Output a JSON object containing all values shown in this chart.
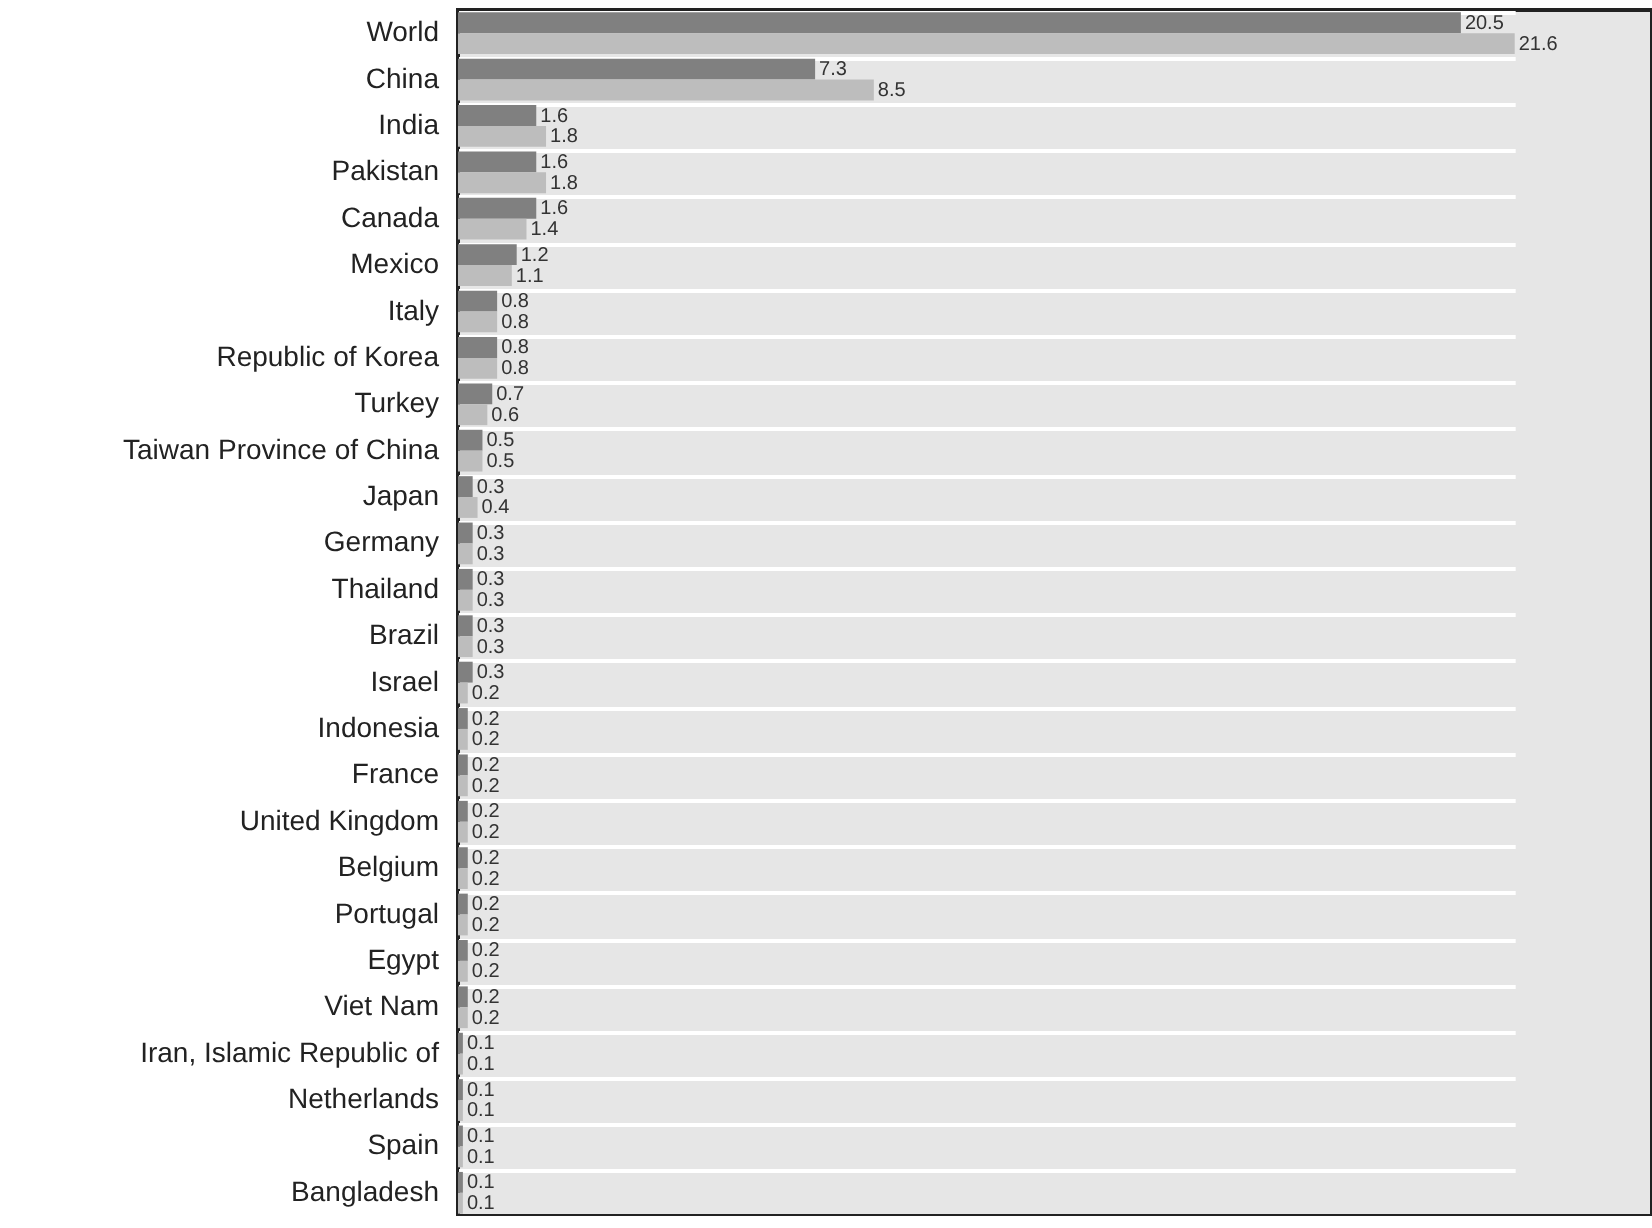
{
  "chart_data": {
    "type": "bar",
    "orientation": "horizontal",
    "data_labels": true,
    "categories": [
      "World",
      "China",
      "India",
      "Pakistan",
      "Canada",
      "Mexico",
      "Italy",
      "Republic of Korea",
      "Turkey",
      "Taiwan Province of China",
      "Japan",
      "Germany",
      "Thailand",
      "Brazil",
      "Israel",
      "Indonesia",
      "France",
      "United Kingdom",
      "Belgium",
      "Portugal",
      "Egypt",
      "Viet Nam",
      "Iran, Islamic Republic of",
      "Netherlands",
      "Spain",
      "Bangladesh"
    ],
    "series": [
      {
        "color": "#808080",
        "values": [
          20.5,
          7.3,
          1.6,
          1.6,
          1.6,
          1.2,
          0.8,
          0.8,
          0.7,
          0.5,
          0.3,
          0.3,
          0.3,
          0.3,
          0.3,
          0.2,
          0.2,
          0.2,
          0.2,
          0.2,
          0.2,
          0.2,
          0.1,
          0.1,
          0.1,
          0.1
        ]
      },
      {
        "color": "#bdbdbd",
        "values": [
          21.6,
          8.5,
          1.8,
          1.8,
          1.4,
          1.1,
          0.8,
          0.8,
          0.6,
          0.5,
          0.4,
          0.3,
          0.3,
          0.3,
          0.2,
          0.2,
          0.2,
          0.2,
          0.2,
          0.2,
          0.2,
          0.2,
          0.1,
          0.1,
          0.1,
          0.1
        ]
      }
    ]
  }
}
